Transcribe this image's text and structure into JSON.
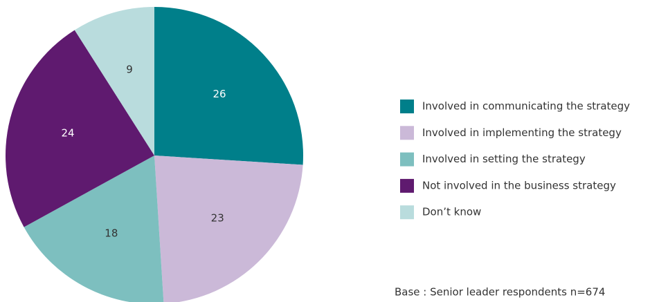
{
  "chart_data": {
    "type": "pie",
    "categories": [
      "Involved in communicating the strategy",
      "Involved in implementing the strategy",
      "Involved in setting the strategy",
      "Not involved in the business strategy",
      "Don’t know"
    ],
    "values": [
      26,
      23,
      18,
      24,
      9
    ],
    "colors": [
      "#007f8a",
      "#cbb9d8",
      "#7dbfbf",
      "#5f1a6f",
      "#b9dcdd"
    ],
    "note": "Base : Senior leader respondents n=674",
    "legend": "right"
  }
}
